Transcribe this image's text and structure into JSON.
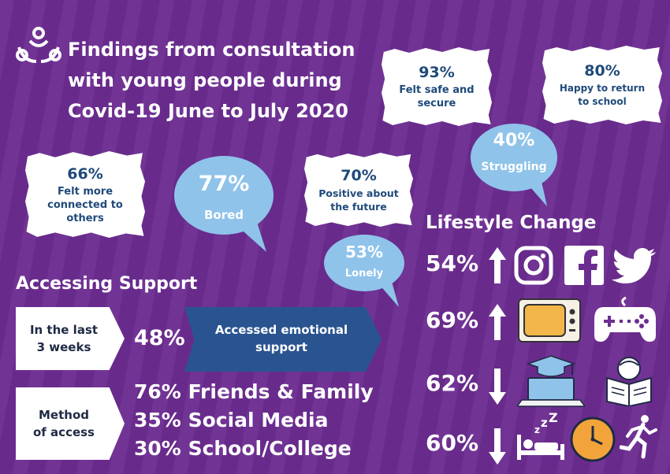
{
  "title": {
    "line1": "Findings from consultation",
    "line2": "with young people during",
    "line3": "Covid-19 June to July 2020"
  },
  "logo_icon": "people-circle-logo-icon",
  "stats": {
    "safe": {
      "pct": "93%",
      "label": "Felt safe and secure"
    },
    "return_school": {
      "pct": "80%",
      "label": "Happy to return to school"
    },
    "struggling": {
      "pct": "40%",
      "label": "Struggling"
    },
    "connected": {
      "pct": "66%",
      "label": "Felt more connected to others"
    },
    "bored": {
      "pct": "77%",
      "label": "Bored"
    },
    "positive": {
      "pct": "70%",
      "label": "Positive about the future"
    },
    "lonely": {
      "pct": "53%",
      "label": "Lonely"
    }
  },
  "accessing_support": {
    "heading": "Accessing Support",
    "period_label_1": "In the last",
    "period_label_2": "3 weeks",
    "accessed_pct": "48%",
    "accessed_label_1": "Accessed emotional",
    "accessed_label_2": "support",
    "method_label_1": "Method",
    "method_label_2": "of access",
    "methods": [
      {
        "pct": "76%",
        "label": "Friends & Family"
      },
      {
        "pct": "35%",
        "label": "Social Media"
      },
      {
        "pct": "30%",
        "label": "School/College"
      }
    ]
  },
  "lifestyle": {
    "heading": "Lifestyle Change",
    "rows": [
      {
        "pct": "54%",
        "direction": "up",
        "icons": [
          "instagram-icon",
          "facebook-icon",
          "twitter-icon"
        ]
      },
      {
        "pct": "69%",
        "direction": "up",
        "icons": [
          "television-icon",
          "game-controller-icon"
        ]
      },
      {
        "pct": "62%",
        "direction": "down",
        "icons": [
          "laptop-graduation-icon",
          "reading-book-icon"
        ]
      },
      {
        "pct": "60%",
        "direction": "down",
        "icons": [
          "sleeping-bed-icon",
          "clock-icon",
          "running-person-icon"
        ]
      }
    ]
  },
  "colors": {
    "background": "#6c2d91",
    "bubble": "#8fc3ea",
    "card_text": "#1f4a7a",
    "ribbon": "#2a5490"
  }
}
